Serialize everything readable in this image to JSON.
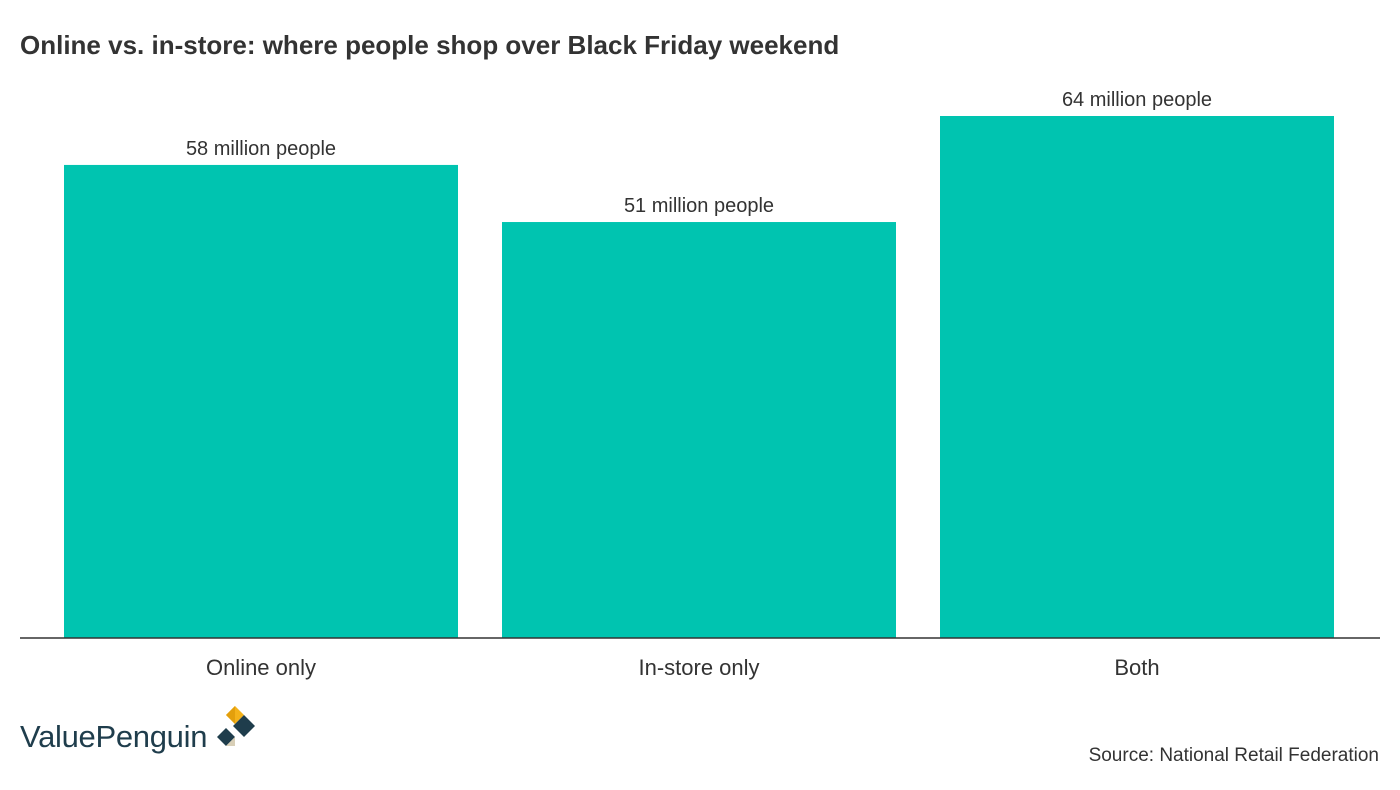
{
  "title": "Online vs. in-store: where people shop over Black Friday weekend",
  "logo": {
    "brand_name": "ValuePenguin",
    "icon": "valuepenguin-logo-icon"
  },
  "source": "Source: National Retail Federation",
  "colors": {
    "bar": "#00c4b0",
    "axis": "#333333",
    "text": "#333333",
    "logo_text": "#1f3d4c",
    "logo_gold": "#f4b21a",
    "logo_navy": "#1f3d4c"
  },
  "chart_data": {
    "type": "bar",
    "title": "Online vs. in-store: where people shop over Black Friday weekend",
    "categories": [
      "Online only",
      "In-store only",
      "Both"
    ],
    "values": [
      58,
      51,
      64
    ],
    "data_labels": [
      "58 million people",
      "51 million people",
      "64 million people"
    ],
    "ylim": [
      0,
      64
    ],
    "grid": false,
    "legend": "none",
    "xlabel": "",
    "ylabel": ""
  }
}
